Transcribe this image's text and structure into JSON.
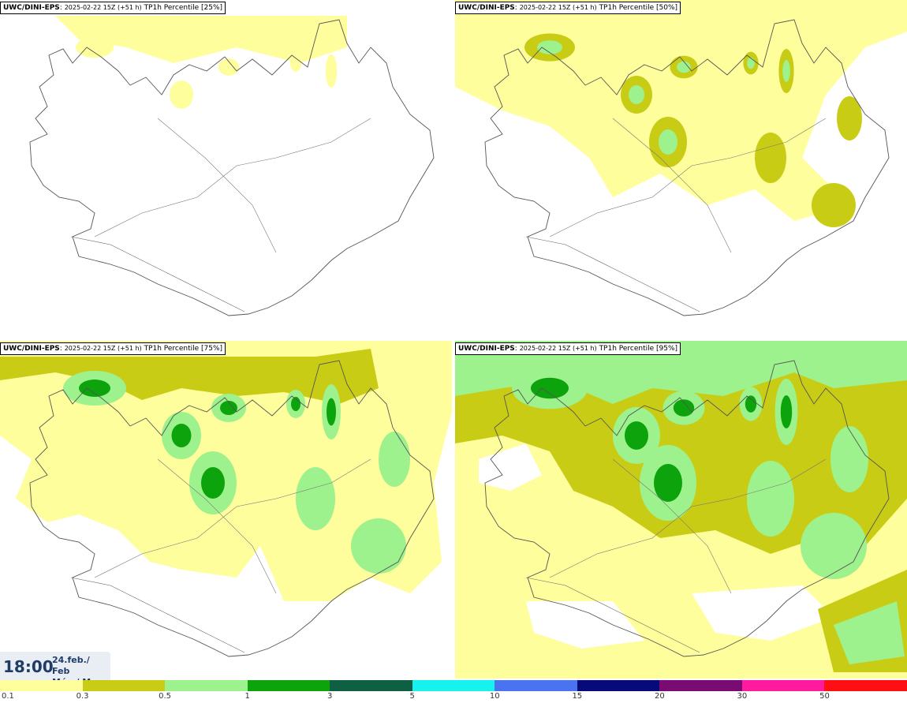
{
  "panels": [
    {
      "source": "UWC/DINI-EPS",
      "run": "2025-02-22 15Z (+51 h)",
      "label": "TP1h Percentile [25%]",
      "intensity": 0
    },
    {
      "source": "UWC/DINI-EPS",
      "run": "2025-02-22 15Z (+51 h)",
      "label": "TP1h Percentile [50%]",
      "intensity": 1
    },
    {
      "source": "UWC/DINI-EPS",
      "run": "2025-02-22 15Z (+51 h)",
      "label": "TP1h Percentile [75%]",
      "intensity": 2
    },
    {
      "source": "UWC/DINI-EPS",
      "run": "2025-02-22 15Z (+51 h)",
      "label": "TP1h Percentile [95%]",
      "intensity": 3
    }
  ],
  "timestamp": {
    "time": "18:00",
    "date_line1": "24.feb./ Feb",
    "date_line2": "Mán./ Mon"
  },
  "legend": {
    "colors": [
      "#fefe9c",
      "#c9cc14",
      "#9ef28e",
      "#0ca30c",
      "#0f5f42",
      "#17f2ee",
      "#4a73ef",
      "#090a7a",
      "#7a0b72",
      "#ff1a9e",
      "#ff0f12"
    ],
    "tick_labels": [
      "0.1",
      "0.3",
      "0.5",
      "1",
      "3",
      "5",
      "10",
      "15",
      "20",
      "30",
      "50"
    ]
  }
}
